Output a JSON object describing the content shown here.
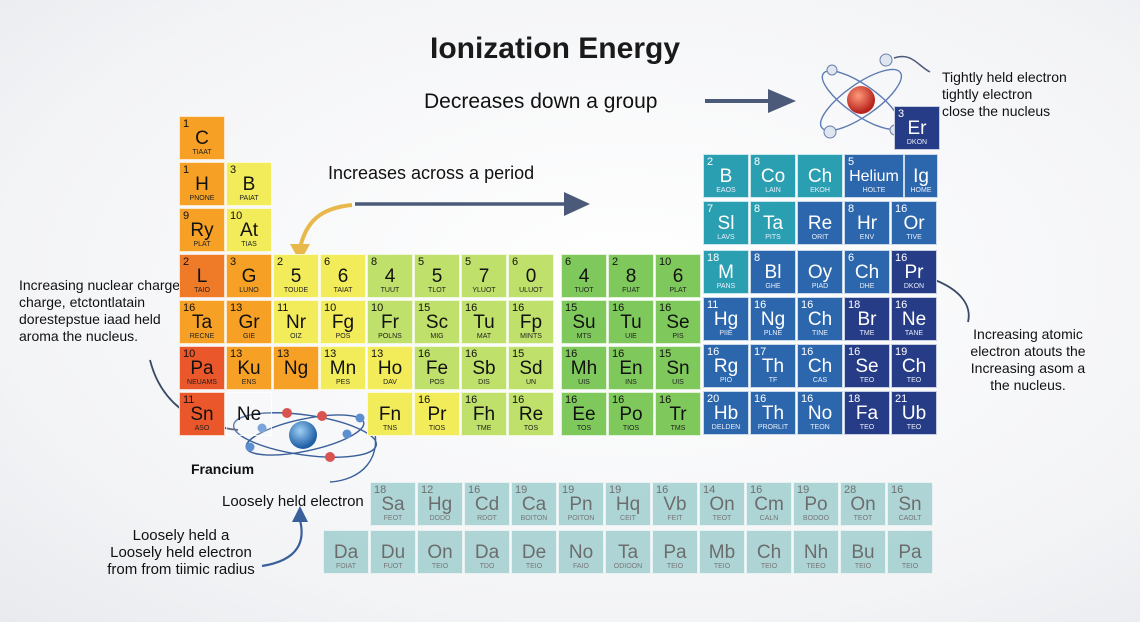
{
  "title": "Ionization Energy",
  "trend_down": "Decreases down a group",
  "trend_across": "Increases across a period",
  "annotations": {
    "tightly": [
      "Tightly held electron",
      "tightly electron",
      "close the nucleus"
    ],
    "left": [
      "Increasing nuclear charge",
      "charge, etctontlatain",
      "dorestepstue iaad held",
      "aroma the nucleus."
    ],
    "right": [
      "Increasing atomic",
      "electron atouts the",
      "Increasing asom a",
      "the nucleus."
    ],
    "francium": "Francium",
    "loosely_held": "Loosely held electron",
    "bottom": [
      "Loosely held a",
      "Loosely held electron",
      "from from tiimic radius"
    ]
  },
  "colors": {
    "red": "#e9572a",
    "orange": "#f6a125",
    "yellow": "#f2ec5a",
    "lime": "#bfe06a",
    "green": "#7fc95c",
    "teal": "#2b9fb2",
    "blue": "#2c67ad",
    "navy": "#273c86",
    "pale_teal": "#7fbfbf",
    "arrow": "#4a5a78",
    "arrow_gold": "#e8b94a"
  },
  "cells": [
    {
      "n": "1",
      "s": "C",
      "nm": "tiaat"
    },
    {
      "n": "1",
      "s": "H",
      "nm": "Pnone"
    },
    {
      "n": "3",
      "s": "B",
      "nm": "Paiat"
    },
    {
      "n": "9",
      "s": "Ry",
      "nm": "Plat"
    },
    {
      "n": "10",
      "s": "At",
      "nm": "Tias"
    },
    {
      "n": "2",
      "s": "L",
      "nm": "Taio"
    },
    {
      "n": "3",
      "s": "G",
      "nm": "Luno"
    },
    {
      "n": "16",
      "s": "Ta",
      "nm": "Recne"
    },
    {
      "n": "13",
      "s": "Gr",
      "nm": "Gie"
    },
    {
      "n": "10",
      "s": "Pa",
      "nm": "Neuams"
    },
    {
      "n": "13",
      "s": "Ku",
      "nm": "Ens"
    },
    {
      "n": "11",
      "s": "Sn",
      "nm": "Aso"
    },
    {
      "n": "",
      "s": "Ne",
      "nm": ""
    },
    {
      "n": "2",
      "s": "5",
      "nm": "Toude"
    },
    {
      "n": "6",
      "s": "6",
      "nm": "Taiat"
    },
    {
      "n": "8",
      "s": "4",
      "nm": "Tuut"
    },
    {
      "n": "5",
      "s": "5",
      "nm": "Tlot"
    },
    {
      "n": "5",
      "s": "7",
      "nm": "Yluot"
    },
    {
      "n": "6",
      "s": "0",
      "nm": "Uluot"
    },
    {
      "n": "6",
      "s": "4",
      "nm": "Tuot"
    },
    {
      "n": "2",
      "s": "8",
      "nm": "Fuat"
    },
    {
      "n": "10",
      "s": "6",
      "nm": "Plat"
    },
    {
      "n": "11",
      "s": "Nr",
      "nm": "Oiz"
    },
    {
      "n": "10",
      "s": "Fg",
      "nm": "Pos"
    },
    {
      "n": "10",
      "s": "Fr",
      "nm": "Polns"
    },
    {
      "n": "15",
      "s": "Sc",
      "nm": "Mig"
    },
    {
      "n": "16",
      "s": "Tu",
      "nm": "Mat"
    },
    {
      "n": "16",
      "s": "Fp",
      "nm": "Mints"
    },
    {
      "n": "15",
      "s": "Su",
      "nm": "Mts"
    },
    {
      "n": "16",
      "s": "Tu",
      "nm": "Uie"
    },
    {
      "n": "16",
      "s": "Se",
      "nm": "Pis"
    },
    {
      "n": "13",
      "s": "Ng",
      "nm": ""
    },
    {
      "n": "13",
      "s": "Mn",
      "nm": "Pes"
    },
    {
      "n": "13",
      "s": "Ho",
      "nm": "Dav"
    },
    {
      "n": "16",
      "s": "Fe",
      "nm": "Pos"
    },
    {
      "n": "16",
      "s": "Sb",
      "nm": "Dis"
    },
    {
      "n": "15",
      "s": "Sd",
      "nm": "Un"
    },
    {
      "n": "16",
      "s": "Mh",
      "nm": "Uis"
    },
    {
      "n": "16",
      "s": "En",
      "nm": "Ins"
    },
    {
      "n": "15",
      "s": "Sn",
      "nm": "Uis"
    },
    {
      "n": "",
      "s": "Fn",
      "nm": "Tns"
    },
    {
      "n": "16",
      "s": "Pr",
      "nm": "Tios"
    },
    {
      "n": "16",
      "s": "Fh",
      "nm": "Tme"
    },
    {
      "n": "16",
      "s": "Re",
      "nm": "Tos"
    },
    {
      "n": "16",
      "s": "Ee",
      "nm": "Tos"
    },
    {
      "n": "16",
      "s": "Po",
      "nm": "Tios"
    },
    {
      "n": "16",
      "s": "Tr",
      "nm": "Tms"
    },
    {
      "n": "2",
      "s": "B",
      "nm": "Eaos"
    },
    {
      "n": "8",
      "s": "Co",
      "nm": "Lain"
    },
    {
      "n": "",
      "s": "Ch",
      "nm": "Ekoh"
    },
    {
      "n": "5",
      "s": "Helium",
      "nm": "Holte"
    },
    {
      "n": "",
      "s": "Ig",
      "nm": "Home"
    },
    {
      "n": "3",
      "s": "Er",
      "nm": "Dkon"
    },
    {
      "n": "7",
      "s": "Sl",
      "nm": "Lavs"
    },
    {
      "n": "8",
      "s": "Ta",
      "nm": "Pits"
    },
    {
      "n": "",
      "s": "Re",
      "nm": "Orit"
    },
    {
      "n": "8",
      "s": "Hr",
      "nm": "Env"
    },
    {
      "n": "16",
      "s": "Or",
      "nm": "Tive"
    },
    {
      "n": "18",
      "s": "M",
      "nm": "Pans"
    },
    {
      "n": "8",
      "s": "Bl",
      "nm": "Ghe"
    },
    {
      "n": "",
      "s": "Oy",
      "nm": "Piad"
    },
    {
      "n": "6",
      "s": "Ch",
      "nm": "Dhe"
    },
    {
      "n": "16",
      "s": "Pr",
      "nm": "Dkon"
    },
    {
      "n": "11",
      "s": "Hg",
      "nm": "Piie"
    },
    {
      "n": "16",
      "s": "Ng",
      "nm": "Plne"
    },
    {
      "n": "16",
      "s": "Ch",
      "nm": "Tine"
    },
    {
      "n": "18",
      "s": "Br",
      "nm": "Tme"
    },
    {
      "n": "16",
      "s": "Ne",
      "nm": "Tane"
    },
    {
      "n": "16",
      "s": "Rg",
      "nm": "Pio"
    },
    {
      "n": "17",
      "s": "Th",
      "nm": "Tf"
    },
    {
      "n": "16",
      "s": "Ch",
      "nm": "Cas"
    },
    {
      "n": "16",
      "s": "Se",
      "nm": "Teo"
    },
    {
      "n": "19",
      "s": "Ch",
      "nm": "Teo"
    },
    {
      "n": "20",
      "s": "Hb",
      "nm": "Delden"
    },
    {
      "n": "16",
      "s": "Th",
      "nm": "Prorlit"
    },
    {
      "n": "16",
      "s": "No",
      "nm": "Teon"
    },
    {
      "n": "18",
      "s": "Fa",
      "nm": "Teo"
    },
    {
      "n": "21",
      "s": "Ub",
      "nm": "Teo"
    },
    {
      "n": "18",
      "s": "Sa",
      "nm": "Feot"
    },
    {
      "n": "12",
      "s": "Hg",
      "nm": "Dodo"
    },
    {
      "n": "16",
      "s": "Cd",
      "nm": "Rdot"
    },
    {
      "n": "19",
      "s": "Ca",
      "nm": "Boiton"
    },
    {
      "n": "19",
      "s": "Pn",
      "nm": "Poiton"
    },
    {
      "n": "19",
      "s": "Hq",
      "nm": "Ceit"
    },
    {
      "n": "16",
      "s": "Vb",
      "nm": "Feit"
    },
    {
      "n": "14",
      "s": "On",
      "nm": "Teot"
    },
    {
      "n": "16",
      "s": "Cm",
      "nm": "Caln"
    },
    {
      "n": "19",
      "s": "Po",
      "nm": "Bodoo"
    },
    {
      "n": "28",
      "s": "On",
      "nm": "Teot"
    },
    {
      "n": "16",
      "s": "Sn",
      "nm": "Caolt"
    },
    {
      "n": "",
      "s": "Da",
      "nm": "Foiat"
    },
    {
      "n": "",
      "s": "Du",
      "nm": "Fuot"
    },
    {
      "n": "",
      "s": "On",
      "nm": "Teio"
    },
    {
      "n": "",
      "s": "Da",
      "nm": "Tdo"
    },
    {
      "n": "",
      "s": "De",
      "nm": "Teio"
    },
    {
      "n": "",
      "s": "No",
      "nm": "Faio"
    },
    {
      "n": "",
      "s": "Ta",
      "nm": "Odioon"
    },
    {
      "n": "",
      "s": "Pa",
      "nm": "Teio"
    },
    {
      "n": "",
      "s": "Mb",
      "nm": "Teio"
    },
    {
      "n": "",
      "s": "Ch",
      "nm": "Teio"
    },
    {
      "n": "",
      "s": "Nh",
      "nm": "Teeo"
    },
    {
      "n": "",
      "s": "Bu",
      "nm": "Teio"
    },
    {
      "n": "",
      "s": "Pa",
      "nm": "Teio"
    }
  ]
}
